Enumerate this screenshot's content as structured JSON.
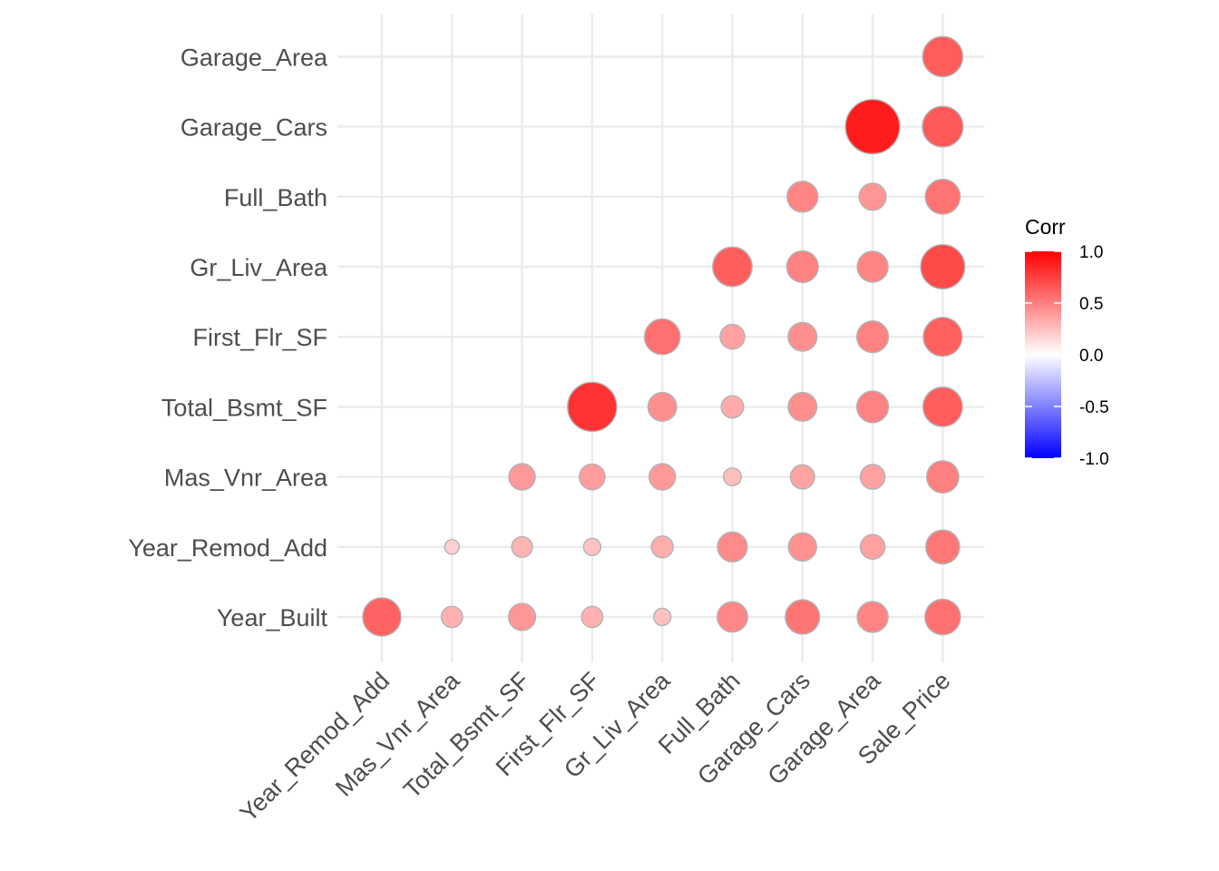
{
  "chart_data": {
    "type": "heatmap",
    "subtype": "correlation-circle-plot-lower-triangle",
    "x_categories": [
      "Year_Remod_Add",
      "Mas_Vnr_Area",
      "Total_Bsmt_SF",
      "First_Flr_SF",
      "Gr_Liv_Area",
      "Full_Bath",
      "Garage_Cars",
      "Garage_Area",
      "Sale_Price"
    ],
    "y_categories": [
      "Year_Built",
      "Year_Remod_Add",
      "Mas_Vnr_Area",
      "Total_Bsmt_SF",
      "First_Flr_SF",
      "Gr_Liv_Area",
      "Full_Bath",
      "Garage_Cars",
      "Garage_Area"
    ],
    "cells": [
      {
        "x": "Year_Remod_Add",
        "y": "Year_Built",
        "value": 0.61
      },
      {
        "x": "Mas_Vnr_Area",
        "y": "Year_Built",
        "value": 0.31
      },
      {
        "x": "Total_Bsmt_SF",
        "y": "Year_Built",
        "value": 0.41
      },
      {
        "x": "First_Flr_SF",
        "y": "Year_Built",
        "value": 0.31
      },
      {
        "x": "Gr_Liv_Area",
        "y": "Year_Built",
        "value": 0.24
      },
      {
        "x": "Full_Bath",
        "y": "Year_Built",
        "value": 0.47
      },
      {
        "x": "Garage_Cars",
        "y": "Year_Built",
        "value": 0.54
      },
      {
        "x": "Garage_Area",
        "y": "Year_Built",
        "value": 0.48
      },
      {
        "x": "Sale_Price",
        "y": "Year_Built",
        "value": 0.56
      },
      {
        "x": "Mas_Vnr_Area",
        "y": "Year_Remod_Add",
        "value": 0.19
      },
      {
        "x": "Total_Bsmt_SF",
        "y": "Year_Remod_Add",
        "value": 0.3
      },
      {
        "x": "First_Flr_SF",
        "y": "Year_Remod_Add",
        "value": 0.24
      },
      {
        "x": "Gr_Liv_Area",
        "y": "Year_Remod_Add",
        "value": 0.32
      },
      {
        "x": "Full_Bath",
        "y": "Year_Remod_Add",
        "value": 0.46
      },
      {
        "x": "Garage_Cars",
        "y": "Year_Remod_Add",
        "value": 0.43
      },
      {
        "x": "Garage_Area",
        "y": "Year_Remod_Add",
        "value": 0.37
      },
      {
        "x": "Sale_Price",
        "y": "Year_Remod_Add",
        "value": 0.53
      },
      {
        "x": "Total_Bsmt_SF",
        "y": "Mas_Vnr_Area",
        "value": 0.4
      },
      {
        "x": "First_Flr_SF",
        "y": "Mas_Vnr_Area",
        "value": 0.39
      },
      {
        "x": "Gr_Liv_Area",
        "y": "Mas_Vnr_Area",
        "value": 0.4
      },
      {
        "x": "Full_Bath",
        "y": "Mas_Vnr_Area",
        "value": 0.25
      },
      {
        "x": "Garage_Cars",
        "y": "Mas_Vnr_Area",
        "value": 0.36
      },
      {
        "x": "Garage_Area",
        "y": "Mas_Vnr_Area",
        "value": 0.37
      },
      {
        "x": "Sale_Price",
        "y": "Mas_Vnr_Area",
        "value": 0.5
      },
      {
        "x": "First_Flr_SF",
        "y": "Total_Bsmt_SF",
        "value": 0.8
      },
      {
        "x": "Gr_Liv_Area",
        "y": "Total_Bsmt_SF",
        "value": 0.44
      },
      {
        "x": "Full_Bath",
        "y": "Total_Bsmt_SF",
        "value": 0.33
      },
      {
        "x": "Garage_Cars",
        "y": "Total_Bsmt_SF",
        "value": 0.44
      },
      {
        "x": "Garage_Area",
        "y": "Total_Bsmt_SF",
        "value": 0.49
      },
      {
        "x": "Sale_Price",
        "y": "Total_Bsmt_SF",
        "value": 0.63
      },
      {
        "x": "Gr_Liv_Area",
        "y": "First_Flr_SF",
        "value": 0.56
      },
      {
        "x": "Full_Bath",
        "y": "First_Flr_SF",
        "value": 0.37
      },
      {
        "x": "Garage_Cars",
        "y": "First_Flr_SF",
        "value": 0.44
      },
      {
        "x": "Garage_Area",
        "y": "First_Flr_SF",
        "value": 0.49
      },
      {
        "x": "Sale_Price",
        "y": "First_Flr_SF",
        "value": 0.62
      },
      {
        "x": "Full_Bath",
        "y": "Gr_Liv_Area",
        "value": 0.63
      },
      {
        "x": "Garage_Cars",
        "y": "Gr_Liv_Area",
        "value": 0.49
      },
      {
        "x": "Garage_Area",
        "y": "Gr_Liv_Area",
        "value": 0.48
      },
      {
        "x": "Sale_Price",
        "y": "Gr_Liv_Area",
        "value": 0.71
      },
      {
        "x": "Garage_Cars",
        "y": "Full_Bath",
        "value": 0.48
      },
      {
        "x": "Garage_Area",
        "y": "Full_Bath",
        "value": 0.41
      },
      {
        "x": "Sale_Price",
        "y": "Full_Bath",
        "value": 0.55
      },
      {
        "x": "Garage_Area",
        "y": "Garage_Cars",
        "value": 0.89
      },
      {
        "x": "Sale_Price",
        "y": "Garage_Cars",
        "value": 0.65
      },
      {
        "x": "Sale_Price",
        "y": "Garage_Area",
        "value": 0.64
      }
    ],
    "legend": {
      "title": "Corr",
      "position": "right",
      "ticks": [
        {
          "value": 1.0,
          "label": "1.0"
        },
        {
          "value": 0.5,
          "label": "0.5"
        },
        {
          "value": 0.0,
          "label": "0.0"
        },
        {
          "value": -0.5,
          "label": "-0.5"
        },
        {
          "value": -1.0,
          "label": "-1.0"
        }
      ],
      "range": [
        -1.0,
        1.0
      ]
    },
    "colors": {
      "low": "#0000ff",
      "mid": "#ffffff",
      "high": "#ff0000",
      "outline": "#b3b3b3",
      "grid": "#ebebeb"
    },
    "grid": true,
    "title": "",
    "xlabel": "",
    "ylabel": ""
  }
}
